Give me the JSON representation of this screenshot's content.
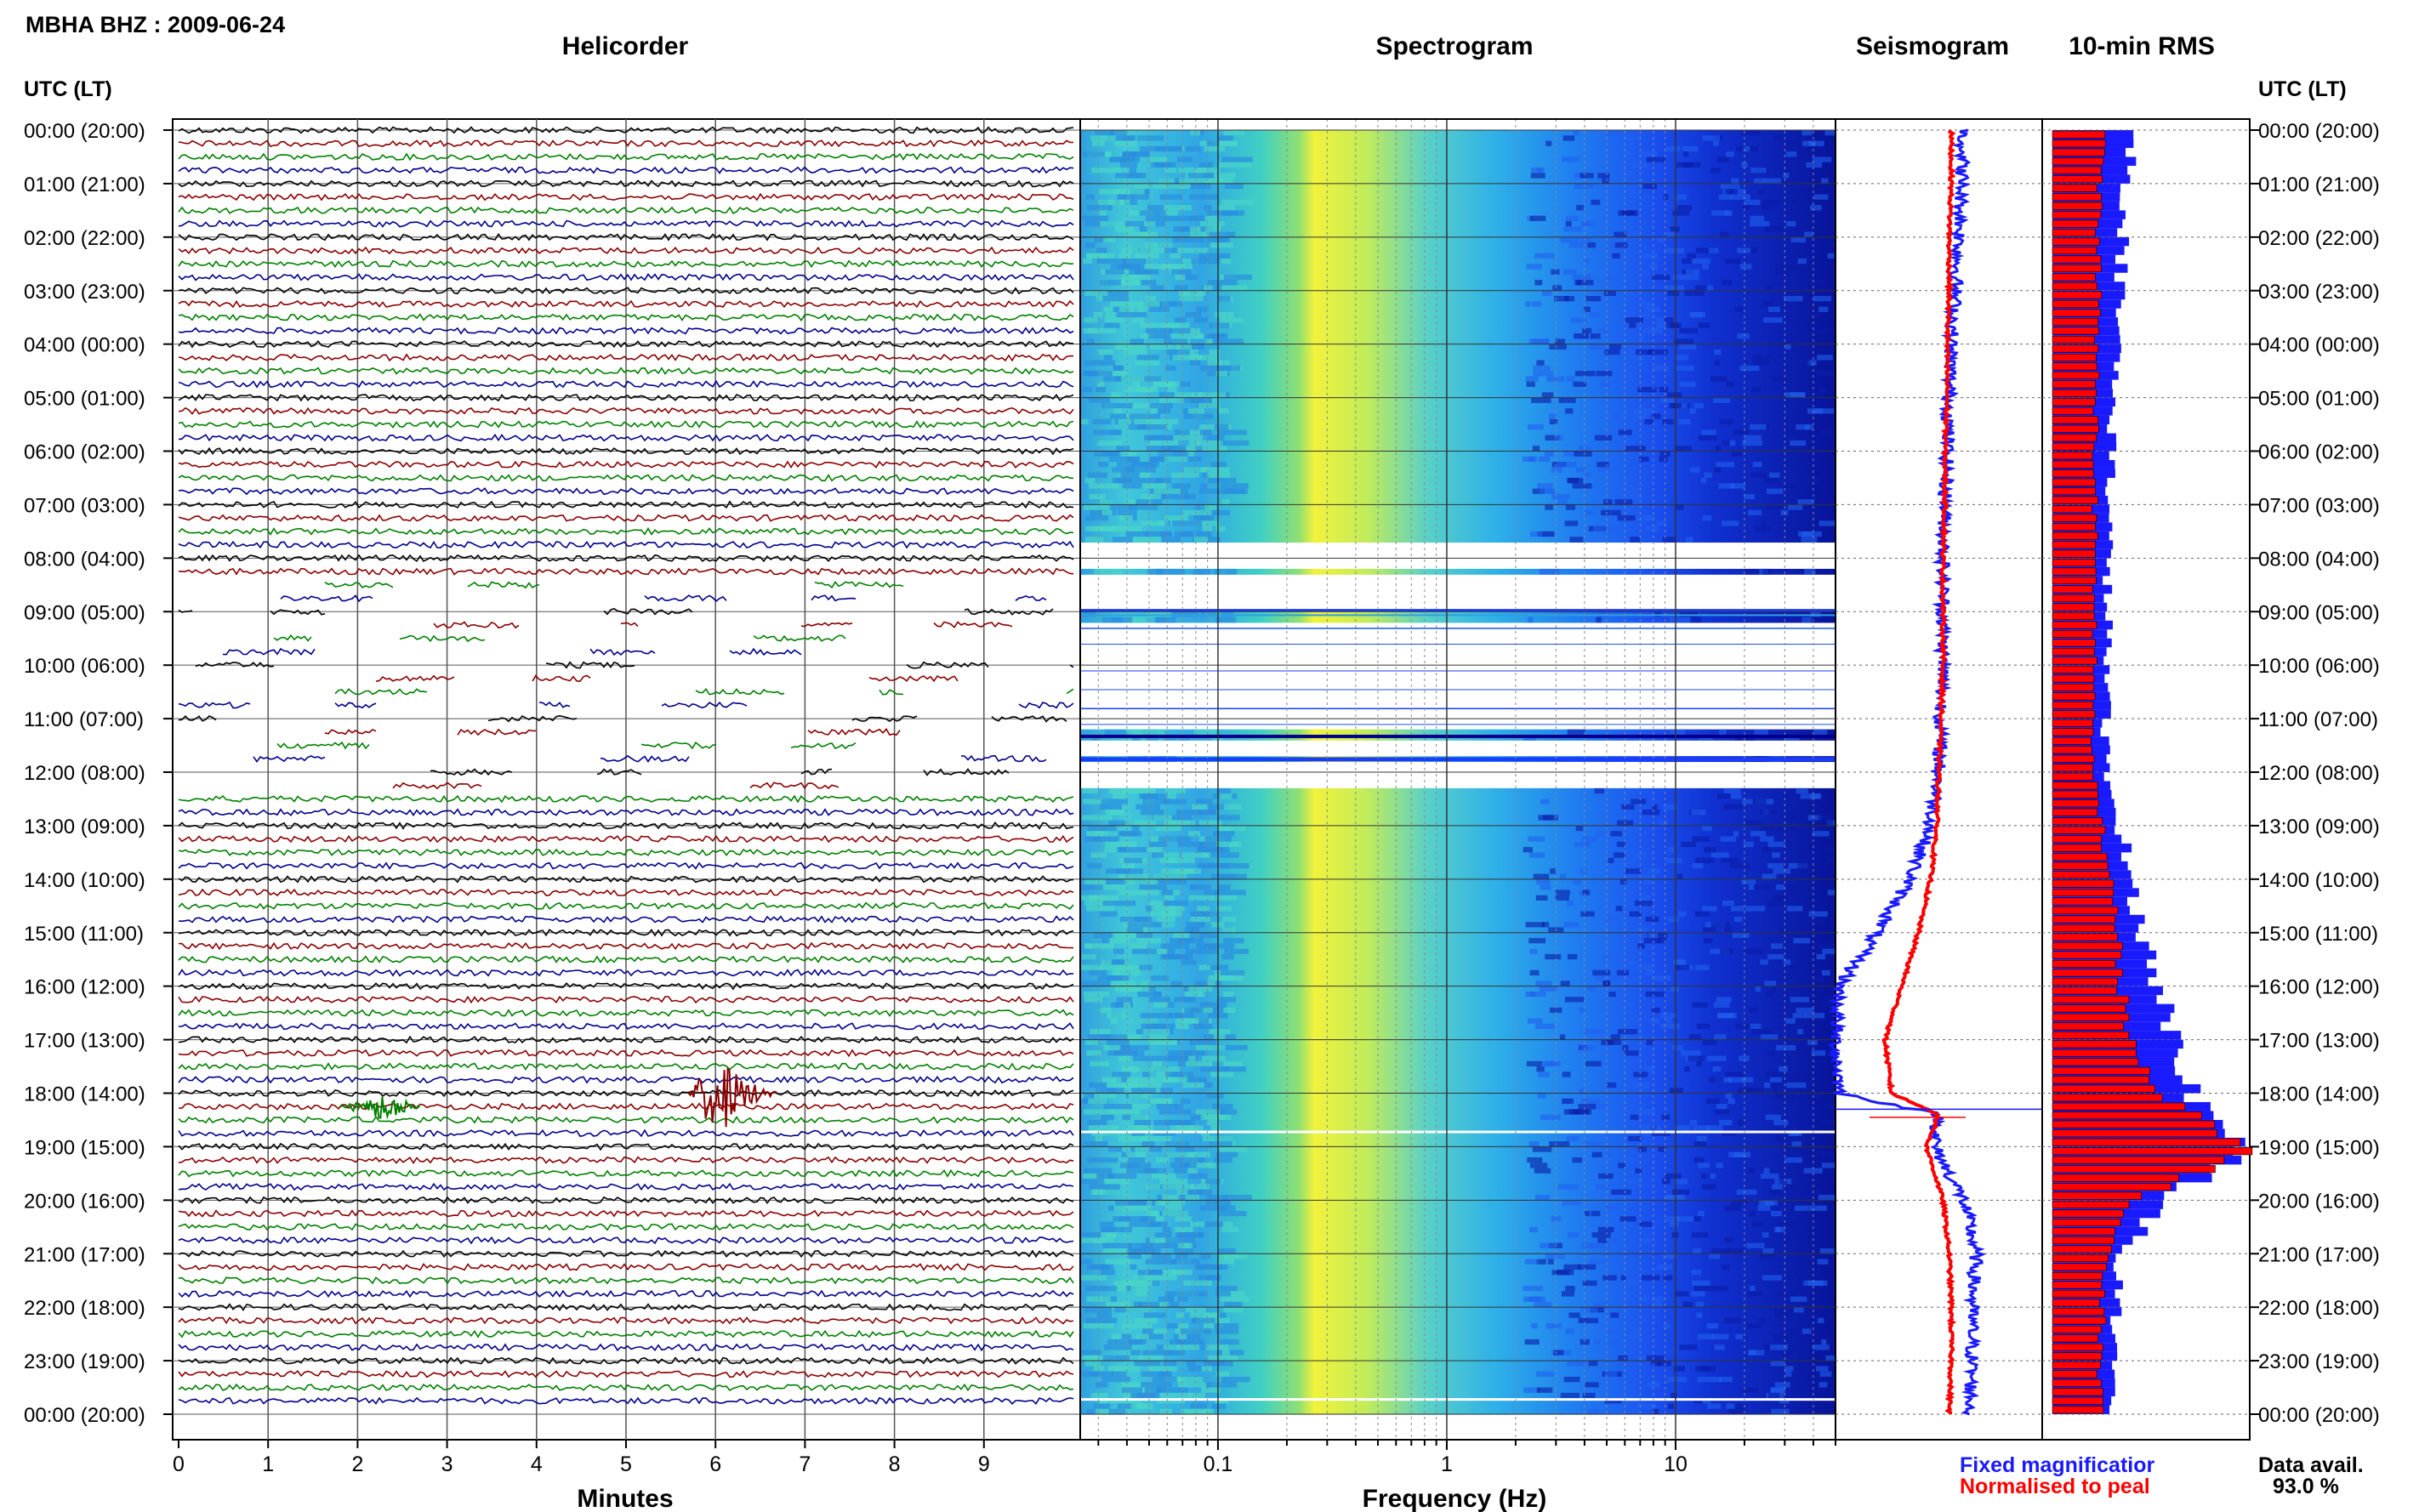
{
  "header": {
    "station_title": "MBHA BHZ : 2009-06-24"
  },
  "panels": {
    "helicorder_title": "Helicorder",
    "spectrogram_title": "Spectrogram",
    "seismogram_title": "Seismogram",
    "rms_title": "10-min RMS"
  },
  "time_axis": {
    "label_left": "UTC (LT)",
    "label_right": "UTC (LT)",
    "ticks": [
      "00:00 (20:00)",
      "01:00 (21:00)",
      "02:00 (22:00)",
      "03:00 (23:00)",
      "04:00 (00:00)",
      "05:00 (01:00)",
      "06:00 (02:00)",
      "07:00 (03:00)",
      "08:00 (04:00)",
      "09:00 (05:00)",
      "10:00 (06:00)",
      "11:00 (07:00)",
      "12:00 (08:00)",
      "13:00 (09:00)",
      "14:00 (10:00)",
      "15:00 (11:00)",
      "16:00 (12:00)",
      "17:00 (13:00)",
      "18:00 (14:00)",
      "19:00 (15:00)",
      "20:00 (16:00)",
      "21:00 (17:00)",
      "22:00 (18:00)",
      "23:00 (19:00)",
      "00:00 (20:00)"
    ]
  },
  "x_axes": {
    "minutes_label": "Minutes",
    "minutes_ticks": [
      "0",
      "1",
      "2",
      "3",
      "4",
      "5",
      "6",
      "7",
      "8",
      "9"
    ],
    "frequency_label": "Frequency (Hz)",
    "frequency_ticks": [
      "0.1",
      "1",
      "10"
    ]
  },
  "legend": {
    "fixed": "Fixed magnificatior",
    "normalised": "Normalised to peal",
    "fixed_color": "#1a1aff",
    "normalised_color": "#ff0000"
  },
  "data_availability": {
    "label": "Data avail.",
    "value": "93.0 %"
  },
  "chart_data": {
    "type": "heatmap",
    "helicorder": {
      "xlim_minutes": [
        0,
        10
      ],
      "trace_colors": [
        "#000000",
        "#8b0000",
        "#008000",
        "#00008b"
      ],
      "traces_per_hour": 4,
      "gap_hours": [
        8.3,
        12.3
      ],
      "events": [
        {
          "hour": 18.25,
          "minute_start": 1.8,
          "minute_end": 2.7,
          "color": "#008000"
        },
        {
          "hour": 18.0,
          "minute_start": 5.7,
          "minute_end": 6.7,
          "color": "#8b0000"
        }
      ]
    },
    "spectrogram": {
      "xscale": "log",
      "xlim_hz": [
        0.025,
        50
      ],
      "colormap": [
        "#00008b",
        "#1a3cff",
        "#2fa0e0",
        "#40d8c0",
        "#f0f040"
      ],
      "gap_hours": [
        [
          7.7,
          8.2
        ],
        [
          8.3,
          9.0
        ],
        [
          9.15,
          11.2
        ],
        [
          11.4,
          11.7
        ],
        [
          11.75,
          12.3
        ]
      ]
    },
    "seismogram": {
      "hours": [
        0,
        1,
        2,
        3,
        4,
        5,
        6,
        7,
        8,
        9,
        10,
        11,
        12,
        13,
        14,
        15,
        16,
        17,
        18,
        18.4,
        19,
        20,
        21,
        22,
        23,
        24
      ],
      "fixed_magnification": [
        0.62,
        0.61,
        0.6,
        0.58,
        0.56,
        0.55,
        0.54,
        0.53,
        0.52,
        0.52,
        0.52,
        0.51,
        0.5,
        0.46,
        0.36,
        0.2,
        0.02,
        0.0,
        0.02,
        0.5,
        0.48,
        0.62,
        0.68,
        0.66,
        0.66,
        0.65
      ],
      "normalised_to_peak": [
        0.56,
        0.56,
        0.55,
        0.55,
        0.54,
        0.54,
        0.53,
        0.53,
        0.52,
        0.52,
        0.52,
        0.51,
        0.5,
        0.49,
        0.46,
        0.4,
        0.32,
        0.24,
        0.27,
        0.5,
        0.44,
        0.52,
        0.55,
        0.56,
        0.56,
        0.55
      ]
    },
    "rms_10min": {
      "fixed_color": "#1a1aff",
      "normalised_color": "#ff0000",
      "hourly_fixed": [
        0.42,
        0.38,
        0.36,
        0.34,
        0.33,
        0.31,
        0.3,
        0.29,
        0.28,
        0.28,
        0.28,
        0.27,
        0.27,
        0.35,
        0.4,
        0.46,
        0.55,
        0.62,
        0.72,
        0.98,
        0.55,
        0.34,
        0.32,
        0.3,
        0.3
      ],
      "hourly_normalised": [
        0.26,
        0.25,
        0.24,
        0.24,
        0.23,
        0.23,
        0.22,
        0.22,
        0.22,
        0.22,
        0.22,
        0.21,
        0.21,
        0.26,
        0.3,
        0.34,
        0.36,
        0.42,
        0.6,
        1.0,
        0.4,
        0.27,
        0.26,
        0.25,
        0.25
      ]
    }
  }
}
